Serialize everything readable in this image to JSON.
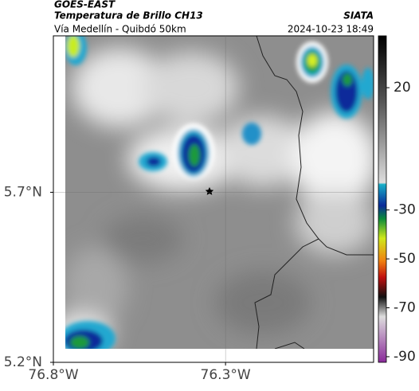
{
  "header": {
    "source": "GOES-EAST",
    "product": "Temperatura de Brillo CH13",
    "agency": "SIATA",
    "route": "Vía Medellín - Quibdó 50km",
    "timestamp": "2024-10-23 18:49"
  },
  "map": {
    "xlim": [
      -76.8,
      -75.87
    ],
    "ylim": [
      5.2,
      6.16
    ],
    "xticks": [
      {
        "value": -76.8,
        "label": "76.8°W"
      },
      {
        "value": -76.3,
        "label": "76.3°W"
      }
    ],
    "yticks": [
      {
        "value": 5.2,
        "label": "5.2°N"
      },
      {
        "value": 5.7,
        "label": "5.7°N"
      }
    ],
    "grid": true
  },
  "colorbar": {
    "lim": [
      -92.3,
      41.2
    ],
    "ticks": [
      20,
      -30,
      -50,
      -70,
      -90
    ]
  }
}
